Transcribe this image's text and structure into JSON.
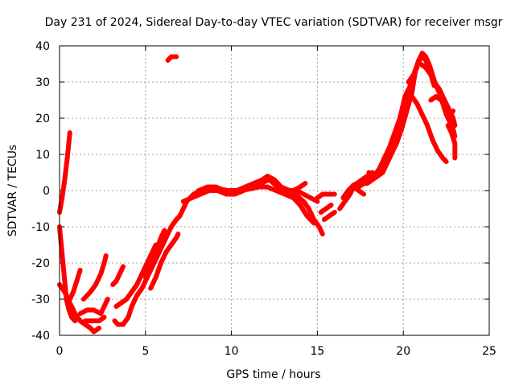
{
  "chart_data": {
    "type": "scatter",
    "title": "Day 231 of 2024, Sidereal Day-to-day VTEC variation (SDTVAR) for receiver msgr",
    "xlabel": "GPS time / hours",
    "ylabel": "SDTVAR / TECUs",
    "xlim": [
      0,
      25
    ],
    "ylim": [
      -40,
      40
    ],
    "xticks": [
      "0",
      "5",
      "10",
      "15",
      "20",
      "25"
    ],
    "yticks": [
      "-40",
      "-30",
      "-20",
      "-10",
      "0",
      "10",
      "20",
      "30",
      "40"
    ],
    "grid": true,
    "marker": "+",
    "color": "#ff0000",
    "series": [
      {
        "name": "seg1",
        "points": [
          [
            0.0,
            -6
          ],
          [
            0.15,
            -2
          ],
          [
            0.3,
            3
          ],
          [
            0.45,
            9
          ],
          [
            0.6,
            16
          ]
        ]
      },
      {
        "name": "seg2",
        "points": [
          [
            0.0,
            -10
          ],
          [
            0.1,
            -15
          ],
          [
            0.2,
            -20
          ],
          [
            0.3,
            -25
          ],
          [
            0.4,
            -30
          ],
          [
            0.55,
            -33
          ],
          [
            0.7,
            -35
          ],
          [
            0.9,
            -36
          ]
        ]
      },
      {
        "name": "seg3",
        "points": [
          [
            0.0,
            -26
          ],
          [
            0.3,
            -28
          ],
          [
            0.6,
            -31
          ],
          [
            0.9,
            -34
          ],
          [
            1.2,
            -36
          ],
          [
            1.5,
            -37
          ],
          [
            1.8,
            -38
          ],
          [
            2.0,
            -39
          ],
          [
            2.3,
            -38
          ]
        ]
      },
      {
        "name": "seg4",
        "points": [
          [
            0.6,
            -30
          ],
          [
            0.8,
            -28
          ],
          [
            1.0,
            -25
          ],
          [
            1.2,
            -22
          ]
        ]
      },
      {
        "name": "seg5",
        "points": [
          [
            1.2,
            -34
          ],
          [
            1.6,
            -33
          ],
          [
            2.0,
            -33
          ],
          [
            2.4,
            -34
          ],
          [
            2.6,
            -32
          ],
          [
            2.8,
            -30
          ]
        ]
      },
      {
        "name": "seg6",
        "points": [
          [
            1.4,
            -30
          ],
          [
            1.8,
            -28
          ],
          [
            2.1,
            -26
          ],
          [
            2.4,
            -23
          ],
          [
            2.6,
            -20
          ],
          [
            2.7,
            -18
          ]
        ]
      },
      {
        "name": "seg7",
        "points": [
          [
            1.5,
            -36
          ],
          [
            1.9,
            -36
          ],
          [
            2.3,
            -36
          ],
          [
            2.6,
            -35
          ]
        ]
      },
      {
        "name": "seg8",
        "points": [
          [
            3.1,
            -26
          ],
          [
            3.3,
            -25
          ],
          [
            3.5,
            -23
          ],
          [
            3.7,
            -21
          ]
        ]
      },
      {
        "name": "seg9",
        "points": [
          [
            3.2,
            -36
          ],
          [
            3.4,
            -37
          ],
          [
            3.7,
            -37
          ],
          [
            4.0,
            -35
          ],
          [
            4.2,
            -32
          ],
          [
            4.5,
            -29
          ],
          [
            4.8,
            -27
          ],
          [
            5.0,
            -25
          ],
          [
            5.3,
            -22
          ],
          [
            5.6,
            -19
          ],
          [
            5.9,
            -16
          ],
          [
            6.2,
            -13
          ],
          [
            6.5,
            -10
          ],
          [
            6.8,
            -8
          ],
          [
            7.0,
            -7
          ]
        ]
      },
      {
        "name": "seg10",
        "points": [
          [
            3.3,
            -32
          ],
          [
            3.6,
            -31
          ],
          [
            3.9,
            -30
          ],
          [
            4.2,
            -28
          ],
          [
            4.5,
            -26
          ],
          [
            4.8,
            -23
          ],
          [
            5.1,
            -20
          ],
          [
            5.4,
            -17
          ],
          [
            5.6,
            -15
          ]
        ]
      },
      {
        "name": "seg11",
        "points": [
          [
            5.0,
            -24
          ],
          [
            5.3,
            -21
          ],
          [
            5.6,
            -17
          ],
          [
            5.9,
            -13
          ],
          [
            6.1,
            -11
          ]
        ]
      },
      {
        "name": "seg12",
        "points": [
          [
            5.3,
            -27
          ],
          [
            5.6,
            -24
          ],
          [
            5.9,
            -20
          ],
          [
            6.2,
            -17
          ],
          [
            6.5,
            -15
          ],
          [
            6.8,
            -13
          ],
          [
            6.9,
            -12
          ]
        ]
      },
      {
        "name": "seg13",
        "points": [
          [
            6.3,
            36
          ],
          [
            6.5,
            37
          ],
          [
            6.8,
            37
          ]
        ]
      },
      {
        "name": "seg14",
        "points": [
          [
            7.0,
            -7
          ],
          [
            7.4,
            -3
          ],
          [
            7.8,
            -1
          ],
          [
            8.3,
            0
          ],
          [
            8.8,
            0.5
          ],
          [
            9.3,
            0.5
          ],
          [
            9.8,
            0
          ],
          [
            10.3,
            0
          ],
          [
            10.8,
            1
          ],
          [
            11.3,
            2
          ],
          [
            11.8,
            3
          ],
          [
            12.1,
            4
          ],
          [
            12.5,
            3
          ],
          [
            12.9,
            1
          ],
          [
            13.4,
            0
          ],
          [
            13.8,
            0
          ],
          [
            14.2,
            -1
          ],
          [
            14.6,
            -2
          ],
          [
            15.0,
            -3
          ]
        ]
      },
      {
        "name": "seg15",
        "points": [
          [
            7.2,
            -3
          ],
          [
            7.7,
            -2
          ],
          [
            8.2,
            -1
          ],
          [
            8.7,
            0
          ],
          [
            9.2,
            0
          ],
          [
            9.7,
            -1
          ],
          [
            10.2,
            -1
          ],
          [
            10.7,
            0
          ],
          [
            11.2,
            1
          ],
          [
            11.7,
            2
          ],
          [
            12.2,
            3
          ],
          [
            12.7,
            1
          ],
          [
            13.2,
            0
          ],
          [
            13.7,
            -1
          ],
          [
            14.2,
            -3
          ],
          [
            14.5,
            -5
          ],
          [
            14.8,
            -8
          ],
          [
            15.1,
            -10
          ],
          [
            15.3,
            -12
          ]
        ]
      },
      {
        "name": "seg16",
        "points": [
          [
            7.6,
            -2
          ],
          [
            8.1,
            0
          ],
          [
            8.6,
            1
          ],
          [
            9.1,
            1
          ],
          [
            9.6,
            0
          ],
          [
            10.1,
            -0.5
          ],
          [
            10.6,
            0
          ],
          [
            11.1,
            0.5
          ],
          [
            11.6,
            1
          ],
          [
            12.1,
            1
          ],
          [
            12.6,
            0
          ],
          [
            13.1,
            -1
          ],
          [
            13.6,
            -2
          ],
          [
            14.0,
            -4
          ],
          [
            14.4,
            -7
          ],
          [
            14.8,
            -9
          ]
        ]
      },
      {
        "name": "seg17",
        "points": [
          [
            12.8,
            0
          ],
          [
            13.2,
            -1
          ],
          [
            13.6,
            0
          ],
          [
            14.0,
            1
          ],
          [
            14.3,
            2
          ]
        ]
      },
      {
        "name": "seg18",
        "points": [
          [
            15.0,
            -2
          ],
          [
            15.3,
            -1
          ],
          [
            15.7,
            -1
          ],
          [
            16.0,
            -1
          ]
        ]
      },
      {
        "name": "seg19",
        "points": [
          [
            15.2,
            -6
          ],
          [
            15.5,
            -5
          ],
          [
            15.8,
            -4
          ]
        ]
      },
      {
        "name": "seg20",
        "points": [
          [
            15.4,
            -8
          ],
          [
            15.7,
            -7
          ],
          [
            16.0,
            -6
          ]
        ]
      },
      {
        "name": "seg21",
        "points": [
          [
            16.3,
            -5
          ],
          [
            16.6,
            -3
          ],
          [
            16.9,
            -1
          ],
          [
            17.1,
            1
          ],
          [
            17.4,
            0
          ],
          [
            17.7,
            -1
          ]
        ]
      },
      {
        "name": "seg22",
        "points": [
          [
            16.5,
            -2
          ],
          [
            16.8,
            0
          ],
          [
            17.1,
            1.5
          ],
          [
            17.3,
            2
          ],
          [
            17.6,
            3
          ],
          [
            17.9,
            4
          ],
          [
            18.2,
            5
          ],
          [
            18.5,
            4
          ],
          [
            18.8,
            5
          ],
          [
            19.0,
            7
          ],
          [
            19.3,
            10
          ],
          [
            19.6,
            13
          ],
          [
            19.9,
            17
          ],
          [
            20.2,
            22
          ],
          [
            20.5,
            27
          ],
          [
            20.7,
            33
          ],
          [
            20.9,
            36
          ],
          [
            21.1,
            38
          ],
          [
            21.3,
            37
          ],
          [
            21.5,
            35
          ],
          [
            21.7,
            32
          ],
          [
            21.9,
            29
          ],
          [
            22.1,
            27
          ],
          [
            22.3,
            24
          ],
          [
            22.5,
            21
          ],
          [
            22.7,
            19
          ],
          [
            22.9,
            17
          ],
          [
            23.0,
            15
          ]
        ]
      },
      {
        "name": "seg23",
        "points": [
          [
            17.4,
            1
          ],
          [
            17.7,
            2
          ],
          [
            18.0,
            3
          ],
          [
            18.3,
            4
          ],
          [
            18.6,
            6
          ],
          [
            18.9,
            9
          ],
          [
            19.2,
            12
          ],
          [
            19.5,
            16
          ],
          [
            19.8,
            20
          ],
          [
            20.1,
            25
          ],
          [
            20.4,
            29
          ],
          [
            20.6,
            32
          ],
          [
            20.8,
            34
          ]
        ]
      },
      {
        "name": "seg24",
        "points": [
          [
            17.6,
            2
          ],
          [
            17.9,
            2
          ],
          [
            18.2,
            3
          ],
          [
            18.5,
            4
          ],
          [
            18.8,
            8
          ],
          [
            19.1,
            11
          ],
          [
            19.4,
            14
          ],
          [
            19.7,
            18
          ],
          [
            19.9,
            22
          ],
          [
            20.1,
            26
          ],
          [
            20.3,
            28
          ],
          [
            20.5,
            26
          ],
          [
            20.8,
            24
          ],
          [
            21.1,
            21
          ],
          [
            21.4,
            18
          ],
          [
            21.7,
            14
          ],
          [
            22.0,
            11
          ],
          [
            22.3,
            9
          ],
          [
            22.5,
            8
          ]
        ]
      },
      {
        "name": "seg25",
        "points": [
          [
            18.0,
            5
          ],
          [
            18.3,
            4
          ],
          [
            18.6,
            5
          ],
          [
            18.9,
            7
          ]
        ]
      },
      {
        "name": "seg26",
        "points": [
          [
            20.3,
            30
          ],
          [
            20.6,
            32
          ],
          [
            20.9,
            36
          ],
          [
            21.2,
            37
          ],
          [
            21.5,
            34
          ],
          [
            21.8,
            30
          ],
          [
            22.1,
            28
          ],
          [
            22.3,
            26
          ],
          [
            22.5,
            24
          ],
          [
            22.7,
            22
          ],
          [
            22.9,
            20
          ],
          [
            23.0,
            18
          ]
        ]
      },
      {
        "name": "seg27",
        "points": [
          [
            21.6,
            25
          ],
          [
            21.9,
            26
          ],
          [
            22.2,
            25
          ],
          [
            22.5,
            23
          ],
          [
            22.7,
            21
          ],
          [
            22.9,
            22
          ]
        ]
      },
      {
        "name": "seg28",
        "points": [
          [
            22.6,
            18
          ],
          [
            22.8,
            16
          ],
          [
            23.0,
            13
          ],
          [
            23.0,
            9
          ]
        ]
      },
      {
        "name": "seg29",
        "points": [
          [
            21.0,
            35
          ],
          [
            21.3,
            34
          ],
          [
            21.6,
            32
          ],
          [
            21.8,
            29
          ]
        ]
      }
    ]
  }
}
